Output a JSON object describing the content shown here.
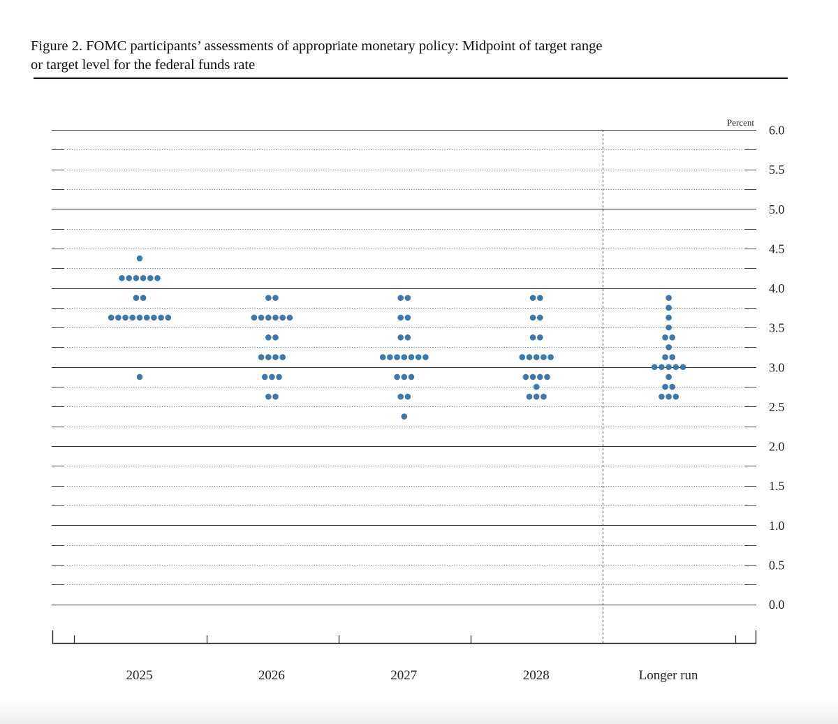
{
  "figure": {
    "title_line1": "Figure 2. FOMC participants’ assessments of appropriate monetary policy: Midpoint of target range",
    "title_line2": "or target level for the federal funds rate"
  },
  "chart_data": {
    "type": "scatter",
    "subtype": "dot-plot",
    "title": "Figure 2. FOMC participants’ assessments of appropriate monetary policy: Midpoint of target range or target level for the federal funds rate",
    "ylabel": "Percent",
    "ylim": [
      0,
      6
    ],
    "yticks": [
      "6.0",
      "5.5",
      "5.0",
      "4.5",
      "4.0",
      "3.5",
      "3.0",
      "2.5",
      "2.0",
      "1.5",
      "1.0",
      "0.5",
      "0.0"
    ],
    "ytick_values": [
      6.0,
      5.5,
      5.0,
      4.5,
      4.0,
      3.5,
      3.0,
      2.5,
      2.0,
      1.5,
      1.0,
      0.5,
      0.0
    ],
    "grid": "dotted every 0.25, solid every 1.0",
    "dot_color": "#3d78a8",
    "categories": [
      "2025",
      "2026",
      "2027",
      "2028",
      "Longer run"
    ],
    "series": [
      {
        "category": "2025",
        "points": [
          {
            "y": 4.375,
            "count": 1
          },
          {
            "y": 4.125,
            "count": 6
          },
          {
            "y": 3.875,
            "count": 2
          },
          {
            "y": 3.625,
            "count": 9
          },
          {
            "y": 2.875,
            "count": 1
          }
        ]
      },
      {
        "category": "2026",
        "points": [
          {
            "y": 3.875,
            "count": 2
          },
          {
            "y": 3.625,
            "count": 6
          },
          {
            "y": 3.375,
            "count": 2
          },
          {
            "y": 3.125,
            "count": 4
          },
          {
            "y": 2.875,
            "count": 3
          },
          {
            "y": 2.625,
            "count": 2
          }
        ]
      },
      {
        "category": "2027",
        "points": [
          {
            "y": 3.875,
            "count": 2
          },
          {
            "y": 3.625,
            "count": 2
          },
          {
            "y": 3.375,
            "count": 2
          },
          {
            "y": 3.125,
            "count": 7
          },
          {
            "y": 2.875,
            "count": 3
          },
          {
            "y": 2.625,
            "count": 2
          },
          {
            "y": 2.375,
            "count": 1
          }
        ]
      },
      {
        "category": "2028",
        "points": [
          {
            "y": 3.875,
            "count": 2
          },
          {
            "y": 3.625,
            "count": 2
          },
          {
            "y": 3.375,
            "count": 2
          },
          {
            "y": 3.125,
            "count": 5
          },
          {
            "y": 2.875,
            "count": 4
          },
          {
            "y": 2.75,
            "count": 1
          },
          {
            "y": 2.625,
            "count": 3
          }
        ]
      },
      {
        "category": "Longer run",
        "points": [
          {
            "y": 3.875,
            "count": 1
          },
          {
            "y": 3.75,
            "count": 1
          },
          {
            "y": 3.625,
            "count": 1
          },
          {
            "y": 3.5,
            "count": 1
          },
          {
            "y": 3.375,
            "count": 2
          },
          {
            "y": 3.25,
            "count": 1
          },
          {
            "y": 3.125,
            "count": 2
          },
          {
            "y": 3.0,
            "count": 5
          },
          {
            "y": 2.875,
            "count": 1
          },
          {
            "y": 2.75,
            "count": 2
          },
          {
            "y": 2.625,
            "count": 3
          }
        ]
      }
    ]
  }
}
